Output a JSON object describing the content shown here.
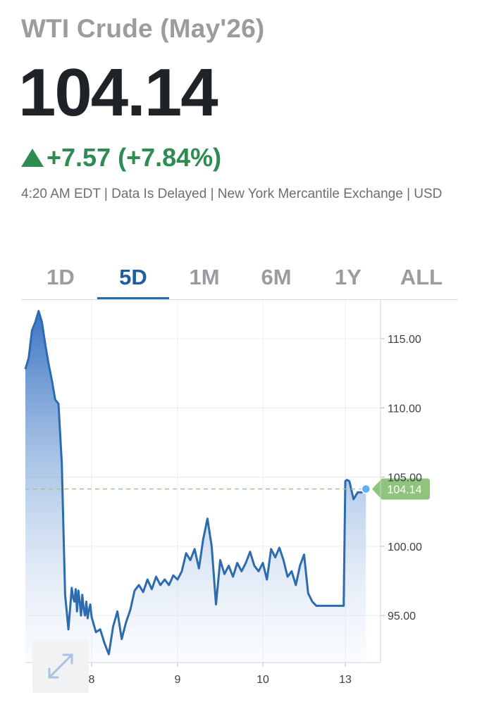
{
  "header": {
    "title": "WTI Crude (May'26)",
    "price": "104.14",
    "change": "+7.57 (+7.84%)",
    "direction": "up",
    "meta": "4:20 AM EDT | Data Is Delayed | New York Mercantile Exchange | USD"
  },
  "tabs": [
    {
      "label": "1D",
      "active": false
    },
    {
      "label": "5D",
      "active": true
    },
    {
      "label": "1M",
      "active": false
    },
    {
      "label": "6M",
      "active": false
    },
    {
      "label": "1Y",
      "active": false
    },
    {
      "label": "ALL",
      "active": false
    }
  ],
  "colors": {
    "accent": "#2d6bb0",
    "up": "#2e8c53",
    "last_price_badge": "#8fc47c",
    "muted": "#9a9c9f"
  },
  "icons": {
    "expand": "expand-arrows-icon"
  },
  "chart_data": {
    "type": "area",
    "x_tick_labels": [
      "8",
      "9",
      "10",
      "13"
    ],
    "y_tick_labels": [
      "115.00",
      "110.00",
      "105.00",
      "100.00",
      "95.00"
    ],
    "y_ticks": [
      115,
      110,
      105,
      100,
      95
    ],
    "ylim": [
      91.6,
      117.8
    ],
    "last_value": 104.14,
    "last_label": "104.14",
    "grid": true,
    "series": [
      {
        "x": [
          0.0,
          0.05,
          0.1,
          0.15,
          0.2,
          0.25,
          0.3,
          0.35,
          0.4,
          0.45,
          0.5,
          0.55,
          0.6,
          0.65,
          0.7,
          0.72,
          0.74,
          0.76,
          0.78,
          0.8,
          0.82,
          0.84,
          0.86,
          0.88,
          0.9,
          0.92,
          0.94,
          0.96,
          0.98,
          1.0,
          1.05,
          1.1,
          1.15,
          1.2,
          1.25,
          1.3,
          1.35,
          1.4,
          1.45,
          1.5,
          1.55,
          1.6,
          1.65,
          1.7,
          1.75,
          1.8,
          1.85,
          1.9,
          1.95,
          2.0,
          2.05,
          2.1,
          2.15,
          2.2,
          2.25,
          2.3,
          2.35,
          2.4,
          2.45,
          2.5,
          2.55,
          2.6,
          2.65,
          2.7,
          2.75,
          2.8,
          2.85,
          2.9,
          2.95,
          3.0,
          3.05,
          3.1,
          3.15,
          3.2,
          3.25,
          3.3,
          3.35,
          3.4,
          3.45,
          3.5,
          3.55,
          3.6,
          3.65,
          3.7,
          3.75,
          3.8,
          3.85,
          3.9,
          3.95,
          3.98,
          4.0,
          4.02,
          4.05,
          4.1,
          4.15,
          4.2,
          4.25
        ],
        "values": [
          112.8,
          113.6,
          115.6,
          116.2,
          117.0,
          116.2,
          114.6,
          113.2,
          112.0,
          110.6,
          110.3,
          106.0,
          96.5,
          94.0,
          97.0,
          96.3,
          96.0,
          96.9,
          95.3,
          96.8,
          96.0,
          95.0,
          96.5,
          95.5,
          95.0,
          96.0,
          94.8,
          95.4,
          95.8,
          94.9,
          93.8,
          94.0,
          93.0,
          92.2,
          94.2,
          95.3,
          93.3,
          94.5,
          95.4,
          96.8,
          97.2,
          96.7,
          97.6,
          96.9,
          97.8,
          97.2,
          97.6,
          97.2,
          97.9,
          97.6,
          98.2,
          99.5,
          99.0,
          99.8,
          98.4,
          100.5,
          102.0,
          100.0,
          95.8,
          99.0,
          98.0,
          98.6,
          97.8,
          98.8,
          98.2,
          98.8,
          99.6,
          98.6,
          98.2,
          98.8,
          97.6,
          99.8,
          99.2,
          99.9,
          99.0,
          97.8,
          98.2,
          97.2,
          98.6,
          99.4,
          96.6,
          96.0,
          95.7,
          95.7,
          95.7,
          95.7,
          95.7,
          95.7,
          95.7,
          95.7,
          104.7,
          104.8,
          104.7,
          103.4,
          103.9,
          103.9,
          104.14
        ]
      }
    ]
  }
}
